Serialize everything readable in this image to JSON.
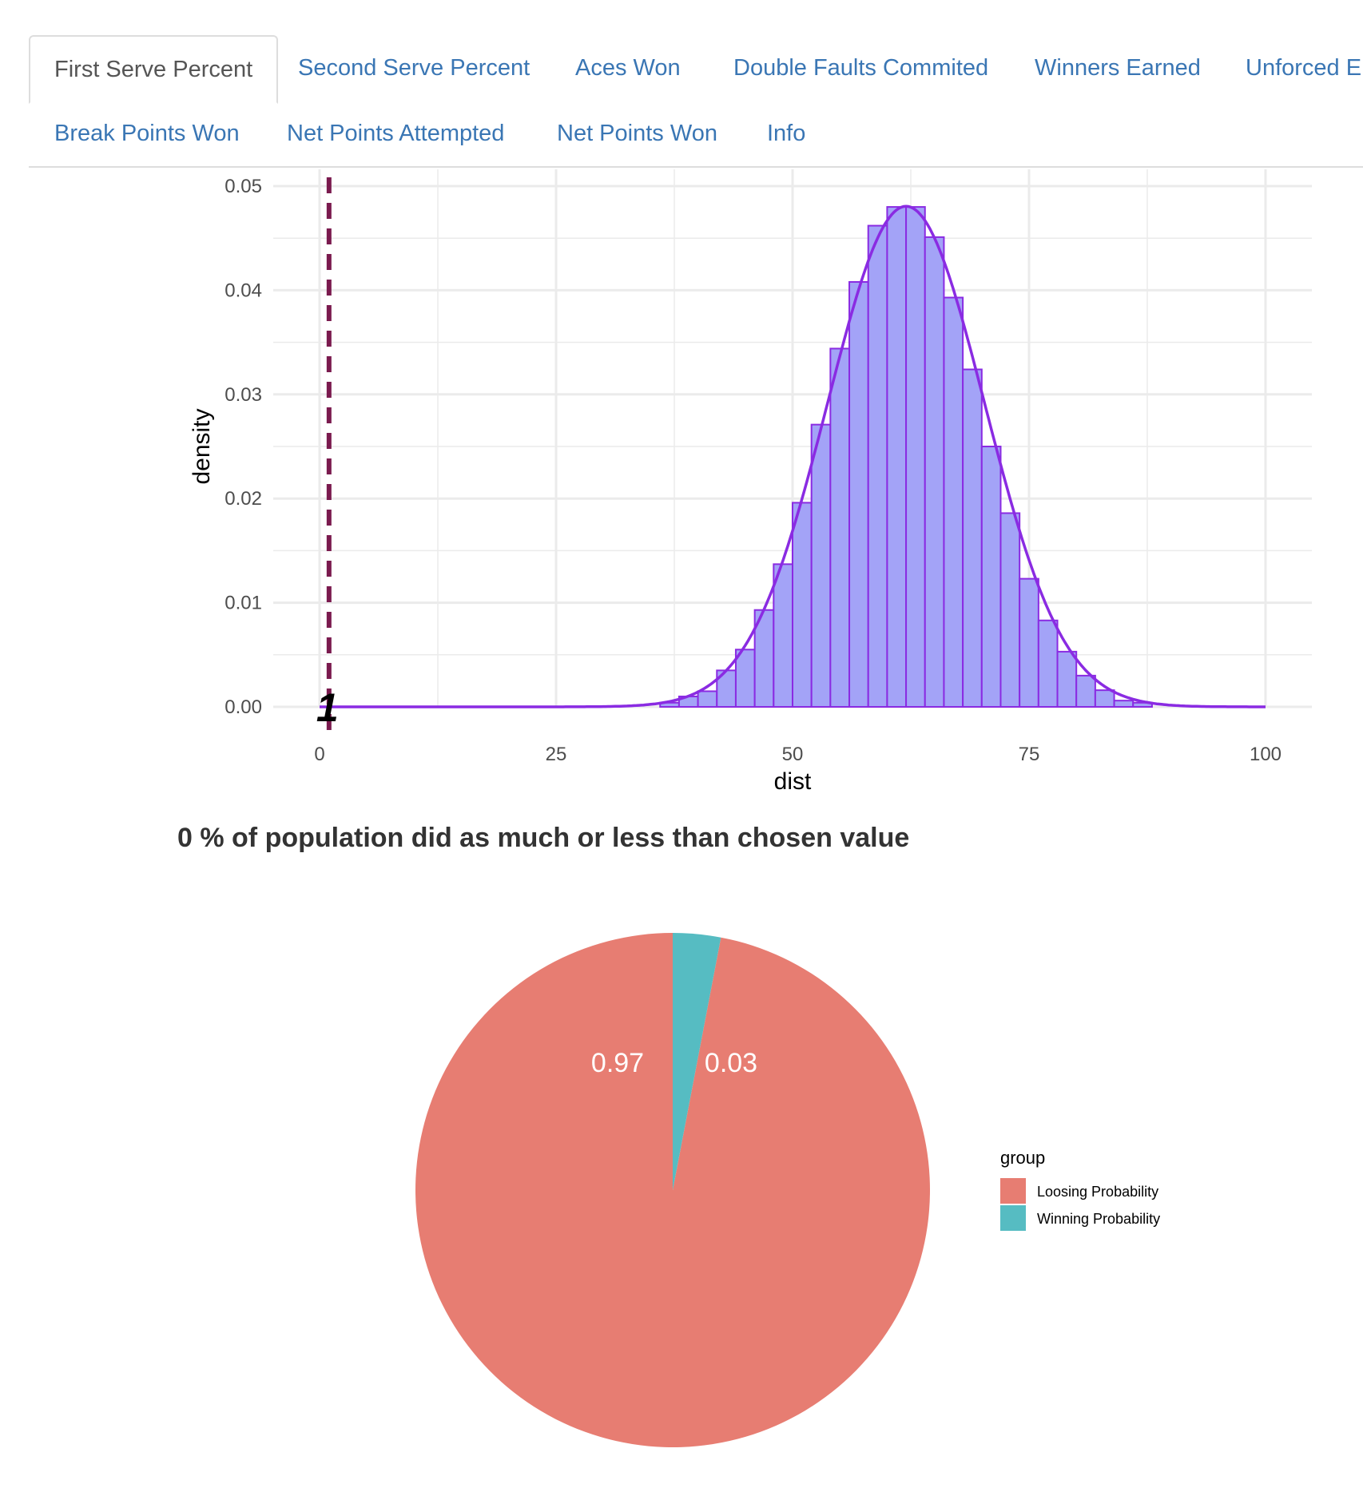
{
  "tabs": [
    {
      "label": "First Serve Percent",
      "active": true
    },
    {
      "label": "Second Serve Percent",
      "active": false
    },
    {
      "label": "Aces Won",
      "active": false
    },
    {
      "label": "Double Faults Commited",
      "active": false
    },
    {
      "label": "Winners Earned",
      "active": false
    },
    {
      "label": "Unforced Er",
      "active": false
    },
    {
      "label": "Break Points Won",
      "active": false
    },
    {
      "label": "Net Points Attempted",
      "active": false
    },
    {
      "label": "Net Points Won",
      "active": false
    },
    {
      "label": "Info",
      "active": false
    }
  ],
  "result_text": "0 % of population did as much or less than chosen value",
  "colors": {
    "histogram_fill": "#a3a3f7",
    "histogram_outline": "#8a2be2",
    "density_line": "#8a2be2",
    "vline": "#7a1a4e",
    "grid": "#ebebeb",
    "loosing": "#e77d72",
    "winning": "#56bcc2"
  },
  "chart_data": [
    {
      "type": "bar",
      "xlabel": "dist",
      "ylabel": "density",
      "xlim": [
        0,
        100
      ],
      "ylim": [
        0,
        0.05
      ],
      "x_ticks": [
        "0",
        "25",
        "50",
        "75",
        "100"
      ],
      "y_ticks": [
        "0.00",
        "0.01",
        "0.02",
        "0.03",
        "0.04",
        "0.05"
      ],
      "grid": true,
      "vline": {
        "x": 1,
        "label": "1",
        "style": "dashed"
      },
      "bin_width": 2,
      "bins": [
        {
          "x": 37,
          "y": 0.0004
        },
        {
          "x": 39,
          "y": 0.001
        },
        {
          "x": 41,
          "y": 0.0015
        },
        {
          "x": 43,
          "y": 0.0035
        },
        {
          "x": 45,
          "y": 0.0055
        },
        {
          "x": 47,
          "y": 0.0093
        },
        {
          "x": 49,
          "y": 0.0137
        },
        {
          "x": 51,
          "y": 0.0196
        },
        {
          "x": 53,
          "y": 0.0271
        },
        {
          "x": 55,
          "y": 0.0344
        },
        {
          "x": 57,
          "y": 0.0408
        },
        {
          "x": 59,
          "y": 0.0462
        },
        {
          "x": 61,
          "y": 0.048
        },
        {
          "x": 63,
          "y": 0.048
        },
        {
          "x": 65,
          "y": 0.0451
        },
        {
          "x": 67,
          "y": 0.0393
        },
        {
          "x": 69,
          "y": 0.0324
        },
        {
          "x": 71,
          "y": 0.025
        },
        {
          "x": 73,
          "y": 0.0186
        },
        {
          "x": 75,
          "y": 0.0123
        },
        {
          "x": 77,
          "y": 0.0083
        },
        {
          "x": 79,
          "y": 0.0053
        },
        {
          "x": 81,
          "y": 0.003
        },
        {
          "x": 83,
          "y": 0.0016
        },
        {
          "x": 85,
          "y": 0.0006
        },
        {
          "x": 87,
          "y": 0.0004
        }
      ],
      "density": {
        "mean": 62,
        "sd": 8.3,
        "x_range": [
          0,
          100
        ]
      }
    },
    {
      "type": "pie",
      "legend_title": "group",
      "legend_position": "right",
      "slices": [
        {
          "name": "Loosing Probability",
          "value": 0.97,
          "label": "0.97"
        },
        {
          "name": "Winning Probability",
          "value": 0.03,
          "label": "0.03"
        }
      ]
    }
  ]
}
